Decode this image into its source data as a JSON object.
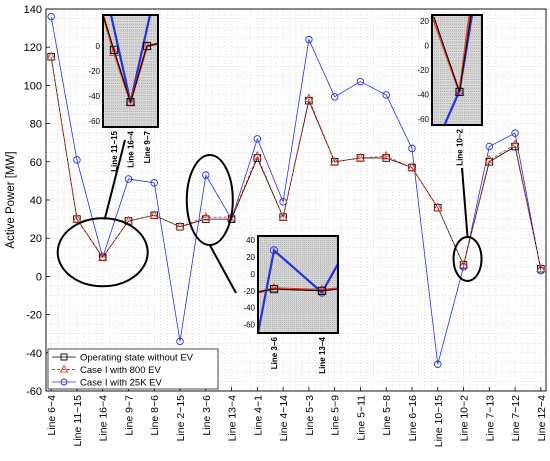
{
  "chart_data": {
    "type": "line",
    "xlabel": "",
    "ylabel": "Active Power [MW]",
    "ylim": [
      -60,
      140
    ],
    "yticks": [
      -60,
      -40,
      -20,
      0,
      20,
      40,
      60,
      80,
      100,
      120,
      140
    ],
    "grid": true,
    "legend_position": "bottom-left",
    "categories": [
      "Line 6−4",
      "Line 11−15",
      "Line 16−4",
      "Line 9−7",
      "Line 8−6",
      "Line 2−15",
      "Line 3−6",
      "Line 13−4",
      "Line 4−1",
      "Line 4−14",
      "Line 5−3",
      "Line 5−9",
      "Line 5−11",
      "Line 5−8",
      "Line 6−16",
      "Line 10−15",
      "Line 10−2",
      "Line 7−13",
      "Line 7−12",
      "Line 12−4"
    ],
    "series": [
      {
        "name": "Operating state without EV",
        "color": "#000000",
        "marker": "square",
        "dash": "none",
        "width": 0.8,
        "values": [
          115,
          30,
          10,
          29,
          32,
          26,
          30,
          30,
          62,
          31,
          92,
          60,
          62,
          62,
          57,
          36,
          6,
          60,
          68,
          4
        ]
      },
      {
        "name": "Case I with 800 EV",
        "color": "#e03c2a",
        "marker": "triangle",
        "dash": "3,2",
        "width": 0.9,
        "values": [
          115,
          30,
          10,
          29,
          32,
          26,
          31,
          31,
          63,
          31,
          93,
          60,
          62,
          63,
          57,
          36,
          6,
          61,
          69,
          4
        ]
      },
      {
        "name": "Case I with 25K EV",
        "color": "#2233dd",
        "marker": "circle",
        "dash": "none",
        "width": 0.8,
        "values": [
          136,
          61,
          10,
          51,
          49,
          -34,
          53,
          30,
          72,
          39,
          124,
          94,
          102,
          95,
          67,
          -46,
          5,
          68,
          75,
          3
        ]
      }
    ],
    "insets": [
      {
        "categories": [
          "Line 11−15",
          "Line 16−4",
          "Line 9−7"
        ],
        "yticks": [
          0,
          -20,
          -40,
          -60
        ],
        "ylim": [
          -65,
          25
        ]
      },
      {
        "categories": [
          "Line 10−2"
        ],
        "yticks": [
          20,
          0,
          -20,
          -40,
          -60
        ],
        "ylim": [
          -65,
          25
        ]
      },
      {
        "categories": [
          "Line 3−6",
          "Line 13−4"
        ],
        "yticks": [
          40,
          20,
          0,
          -20,
          -40,
          -60
        ],
        "ylim": [
          -70,
          45
        ]
      }
    ]
  }
}
